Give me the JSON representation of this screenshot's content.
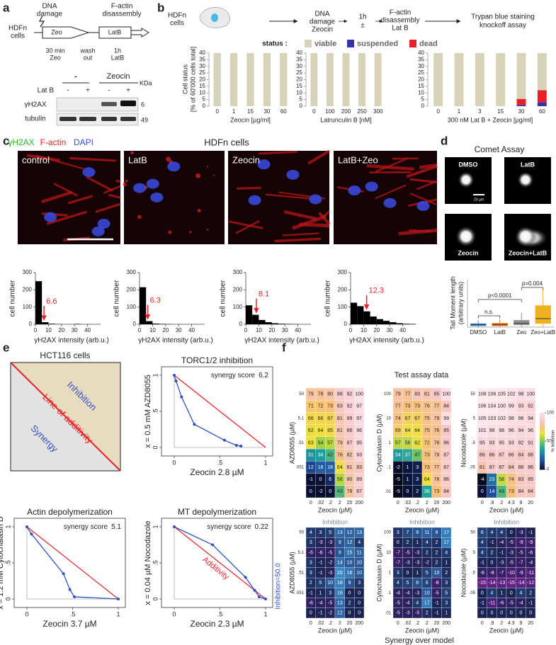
{
  "panel_labels": [
    "a",
    "b",
    "c",
    "d",
    "e",
    "f"
  ],
  "a": {
    "cells": [
      "HDFn",
      "cells"
    ],
    "step1": [
      "DNA",
      "damage"
    ],
    "step2": [
      "F-actin",
      "disassembly"
    ],
    "zeo": "Zeo",
    "latb": "LatB",
    "zeo_time": [
      "30 min",
      "Zeo"
    ],
    "wash": [
      "wash",
      "out"
    ],
    "latb_time": [
      "1h",
      "LatB"
    ],
    "groups": [
      "-",
      "Zeocin"
    ],
    "latb_row": "Lat B",
    "signs": [
      "-",
      "+",
      "-",
      "+"
    ],
    "kda": "KDa",
    "rows": [
      "γH2AX",
      "tubulin"
    ],
    "markers": [
      6,
      49
    ]
  },
  "b": {
    "header": {
      "cells": [
        "HDFn",
        "cells"
      ],
      "step1": [
        "DNA",
        "damage",
        "Zeocin"
      ],
      "mid": [
        "1h",
        "±"
      ],
      "step2": [
        "F-actin",
        "disassembly",
        "Lat B"
      ],
      "step3": [
        "Trypan blue staining",
        "knockoff assay"
      ]
    },
    "type": "bar",
    "stacked": true,
    "status_title": "status :",
    "series": [
      {
        "name": "viable",
        "color": "#d8d2b8"
      },
      {
        "name": "suspended",
        "color": "#3434a8"
      },
      {
        "name": "dead",
        "color": "#e82028"
      }
    ],
    "ylabel": [
      "Cell status",
      "[% of 60'000 cells total]"
    ],
    "ylim": [
      0,
      40
    ],
    "yticks": [
      0,
      5,
      10,
      15,
      20,
      25,
      30,
      35,
      40
    ],
    "charts": [
      {
        "xlabel": "Zeocin [µg/ml]",
        "categories": [
          0,
          1,
          15,
          30,
          60
        ],
        "stacks": [
          [
            100,
            100,
            100,
            100,
            100
          ],
          [
            0,
            0,
            0,
            0,
            0
          ],
          [
            0,
            0,
            0,
            0,
            0
          ]
        ]
      },
      {
        "xlabel": "Latrunculin B [nM]",
        "categories": [
          0,
          100,
          200,
          250,
          300
        ],
        "stacks": [
          [
            100,
            100,
            100,
            100,
            100
          ],
          [
            0,
            0,
            0,
            0,
            0
          ],
          [
            0,
            0,
            0,
            0,
            0
          ]
        ]
      },
      {
        "xlabel": "300 nM Lat B + Zeocin [µg/ml]",
        "categories": [
          0,
          1,
          3,
          15,
          30,
          60
        ],
        "stacks": [
          [
            100,
            100,
            100,
            100,
            94.5,
            88
          ],
          [
            0,
            0,
            0,
            0,
            1,
            3
          ],
          [
            0,
            0,
            0,
            0,
            4.5,
            9
          ]
        ]
      }
    ]
  },
  "c": {
    "legend": [
      {
        "name": "γH2AX",
        "color": "#22b822"
      },
      {
        "name": "F-actin",
        "color": "#e82028"
      },
      {
        "name": "DAPI",
        "color": "#3050e0"
      }
    ],
    "title": "HDFn cells",
    "conditions": [
      "control",
      "LatB",
      "Zeocin",
      "LatB+Zeo"
    ],
    "hist": {
      "type": "histogram",
      "ylabel": "cell number",
      "xlabel": "γH2AX intensity (arb.u.)",
      "ylim": [
        0,
        300
      ],
      "yticks": [
        0,
        100,
        200,
        300
      ],
      "xlim": [
        0,
        50
      ],
      "xticks": [
        0,
        10,
        20,
        30,
        40
      ],
      "bins": [
        0,
        5,
        10,
        15,
        20,
        25,
        30,
        35,
        40,
        45,
        50
      ],
      "color": "#000000",
      "marker_color": "#e82028",
      "counts": [
        [
          250,
          12,
          3,
          1,
          0,
          0,
          2,
          0,
          0,
          0
        ],
        [
          215,
          18,
          4,
          2,
          1,
          0,
          0,
          0,
          0,
          0
        ],
        [
          110,
          55,
          25,
          12,
          6,
          3,
          2,
          1,
          0,
          0
        ],
        [
          125,
          105,
          75,
          45,
          30,
          20,
          12,
          6,
          3,
          2
        ]
      ],
      "medians": [
        6.6,
        6.3,
        8.1,
        12.3
      ]
    }
  },
  "d": {
    "title": "Comet Assay",
    "images": [
      "DMSO",
      "LatB",
      "Zeocin",
      "Zeocin+LatB"
    ],
    "scale": "20 µm",
    "box": {
      "type": "box",
      "ylabel": [
        "Tail Moment length",
        "(arbitrary units)"
      ],
      "categories": [
        "DMSO",
        "LatB",
        "Zeo",
        "Zeo+LatB"
      ],
      "colors": [
        "#4a8ad0",
        "#f07820",
        "#909090",
        "#f0b020"
      ],
      "ylim": [
        0,
        100
      ],
      "boxes": [
        {
          "whislo": 0,
          "q1": 3,
          "med": 5,
          "q3": 7,
          "whishi": 14
        },
        {
          "whislo": 0,
          "q1": 3,
          "med": 5,
          "q3": 8,
          "whishi": 16
        },
        {
          "whislo": 0,
          "q1": 5,
          "med": 8,
          "q3": 14,
          "whishi": 30
        },
        {
          "whislo": 0,
          "q1": 8,
          "med": 18,
          "q3": 45,
          "whishi": 80
        }
      ],
      "tests": [
        "n.s.",
        "p<0.0001",
        "p=0.004"
      ]
    }
  },
  "e": {
    "schematic": {
      "title": "HCT116 cells",
      "inhibition": "Inhibition",
      "additivity": "Line of additivity",
      "synergy": "Synergy"
    },
    "type": "line",
    "xlim": [
      0,
      1
    ],
    "ylim": [
      0,
      1
    ],
    "xticks": [
      0,
      {
        "value": 0.5,
        "label": ".5"
      },
      1
    ],
    "yticks": [
      0,
      {
        "value": 0.5,
        "label": ".5"
      },
      1
    ],
    "color": "#3050c0",
    "additivity_color": "#e82028",
    "isobolograms": [
      {
        "title": "TORC1/2 inhibition",
        "ylabel": "x = 0.5 mM AZD8055",
        "xlabel": "Zeocin 2.8 µM",
        "score_label": "synergy score",
        "score": 6.2,
        "x": [
          0,
          0.02,
          0.08,
          0.22,
          0.55,
          0.68,
          0.73
        ],
        "y": [
          1,
          0.92,
          0.7,
          0.32,
          0.1,
          0.03,
          0.02
        ]
      },
      {
        "title": "Actin depolymerization",
        "ylabel": "x = 1.2 mM Cytochalasin D",
        "xlabel": "Zeocin 3.7 µM",
        "score_label": "synergy score",
        "score": 5.1,
        "x": [
          0,
          0.05,
          0.4,
          0.47,
          0.52,
          1
        ],
        "y": [
          1,
          0.9,
          0.35,
          0.13,
          0.03,
          0
        ]
      },
      {
        "title": "MT depolymerization",
        "ylabel": "x = 0.04 µM Nocodazole",
        "xlabel": "Zeocin 2.3 µM",
        "score_label": "synergy score",
        "score": 0.22,
        "x": [
          0,
          0.42,
          0.78,
          0.88,
          0.93,
          1
        ],
        "y": [
          1,
          0.75,
          0.3,
          0.12,
          0.03,
          0
        ],
        "additivity_label": "Additivity",
        "level_label": "Inhibition=50.0"
      }
    ]
  },
  "f": {
    "title": "Test assay data",
    "xlabel": "Zeocin (µM)",
    "top": [
      {
        "ylabel": "AZD8055 (µM)",
        "xcats": [
          "0",
          ".02",
          ".2",
          "2",
          "20",
          "200"
        ],
        "ycats": [
          "50",
          null,
          "5.1",
          null,
          ".51",
          null,
          ".051",
          null,
          null
        ],
        "values": [
          [
            79,
            78,
            80,
            88,
            92,
            100
          ],
          [
            71,
            72,
            73,
            83,
            92,
            97
          ],
          [
            66,
            66,
            67,
            81,
            89,
            97
          ],
          [
            62,
            64,
            65,
            81,
            86,
            96
          ],
          [
            63,
            54,
            57,
            79,
            87,
            95
          ],
          [
            31,
            34,
            42,
            76,
            82,
            93
          ],
          [
            12,
            18,
            18,
            64,
            81,
            83
          ],
          [
            -1,
            0,
            6,
            56,
            80,
            89
          ],
          [
            0,
            -2,
            0,
            43,
            78,
            87
          ]
        ]
      },
      {
        "ylabel": "Cytochalasin D (µM)",
        "xcats": [
          "0",
          ".02",
          ".2",
          "2",
          "20",
          "200"
        ],
        "ycats": [
          "100",
          null,
          "10",
          null,
          "1",
          null,
          ".1",
          null,
          ".01"
        ],
        "values": [
          [
            79,
            77,
            83,
            81,
            85,
            100
          ],
          [
            77,
            73,
            73,
            76,
            77,
            84
          ],
          [
            74,
            67,
            67,
            75,
            79,
            99
          ],
          [
            69,
            64,
            64,
            75,
            76,
            85
          ],
          [
            57,
            58,
            62,
            72,
            78,
            86
          ],
          [
            34,
            37,
            47,
            73,
            79,
            87
          ],
          [
            -2,
            1,
            3,
            73,
            77,
            87
          ],
          [
            -5,
            1,
            3,
            64,
            78,
            86
          ],
          [
            -5,
            0,
            2,
            36,
            73,
            84
          ]
        ]
      },
      {
        "ylabel": "Nocodazole (µM)",
        "xcats": [
          "0",
          ".9",
          "2",
          "4.3",
          "9",
          "20"
        ],
        "ycats": [
          "50",
          null,
          "5",
          null,
          ".5",
          null,
          ".05",
          null,
          null
        ],
        "values": [
          [
            108,
            106,
            105,
            102,
            98,
            100
          ],
          [
            106,
            104,
            100,
            99,
            93,
            92
          ],
          [
            105,
            103,
            102,
            98,
            96,
            94
          ],
          [
            101,
            99,
            98,
            96,
            94,
            96
          ],
          [
            95,
            93,
            95,
            93,
            92,
            91
          ],
          [
            86,
            86,
            87,
            86,
            84,
            88
          ],
          [
            81,
            87,
            87,
            84,
            88,
            86
          ],
          [
            -4,
            23,
            58,
            74,
            83,
            85
          ],
          [
            0,
            14,
            43,
            73,
            84,
            84
          ]
        ]
      }
    ],
    "colorbar": {
      "label": "% Inhibition",
      "ticks": [
        0,
        50,
        100
      ]
    },
    "bottom_title": "Inhibition",
    "bottom": [
      {
        "ylabel": "AZD8055 (µM)",
        "xcats": [
          "0",
          ".02",
          ".2",
          "2",
          "20",
          "200"
        ],
        "ycats": [
          "50",
          null,
          "5.1",
          null,
          ".51",
          null,
          ".051",
          null,
          null
        ],
        "values": [
          [
            4,
            3,
            5,
            13,
            12,
            13
          ],
          [
            3,
            -3,
            -3,
            9,
            12,
            4
          ],
          [
            -5,
            -6,
            -5,
            9,
            15,
            11
          ],
          [
            3,
            -1,
            -2,
            14,
            10,
            10
          ],
          [
            3,
            -1,
            -3,
            20,
            16,
            10
          ],
          [
            2,
            5,
            10,
            18,
            9,
            3
          ],
          [
            -1,
            1,
            3,
            16,
            0,
            0
          ],
          [
            -6,
            -4,
            -5,
            13,
            2,
            0
          ],
          [
            0,
            -1,
            -2,
            12,
            0,
            0
          ]
        ]
      },
      {
        "ylabel": "Cytochalasin D (µM)",
        "xcats": [
          "0",
          ".02",
          ".2",
          "2",
          "20",
          "200"
        ],
        "ycats": [
          "100",
          null,
          "10",
          null,
          "1",
          null,
          ".1",
          null,
          ".01"
        ],
        "values": [
          [
            3,
            7,
            9,
            11,
            9,
            17
          ],
          [
            0,
            2,
            1,
            4,
            2,
            17
          ],
          [
            -7,
            -5,
            -3,
            2,
            2,
            4
          ],
          [
            -7,
            -3,
            -3,
            -2,
            2,
            1
          ],
          [
            3,
            0,
            1,
            5,
            10,
            2
          ],
          [
            4,
            5,
            8,
            6,
            -8,
            3
          ],
          [
            -4,
            -4,
            -3,
            10,
            -5,
            5
          ],
          [
            -5,
            -4,
            4,
            17,
            -1,
            3
          ],
          [
            -5,
            -3,
            -5,
            2,
            -1,
            1
          ]
        ]
      },
      {
        "ylabel": "Nocodazole (µM)",
        "xcats": [
          "0",
          ".9",
          "2",
          "4.3",
          "9",
          "20"
        ],
        "ycats": [
          "50",
          null,
          "5",
          null,
          ".5",
          null,
          ".05",
          null,
          null
        ],
        "values": [
          [
            6,
            4,
            4,
            0,
            -3,
            -1
          ],
          [
            4,
            -1,
            -4,
            -5,
            -9,
            -9
          ],
          [
            4,
            2,
            -1,
            -3,
            -5,
            -6
          ],
          [
            -1,
            0,
            -3,
            -5,
            -7,
            -4
          ],
          [
            -6,
            -8,
            -7,
            -10,
            -9,
            -11
          ],
          [
            -15,
            -14,
            -13,
            -15,
            -14,
            -12
          ],
          [
            0,
            4,
            1,
            0,
            4,
            2
          ],
          [
            -1,
            -11,
            -6,
            -5,
            -4,
            -1
          ],
          [
            0,
            0,
            0,
            0,
            0,
            0
          ]
        ]
      }
    ],
    "footer": "Synergy over model"
  }
}
